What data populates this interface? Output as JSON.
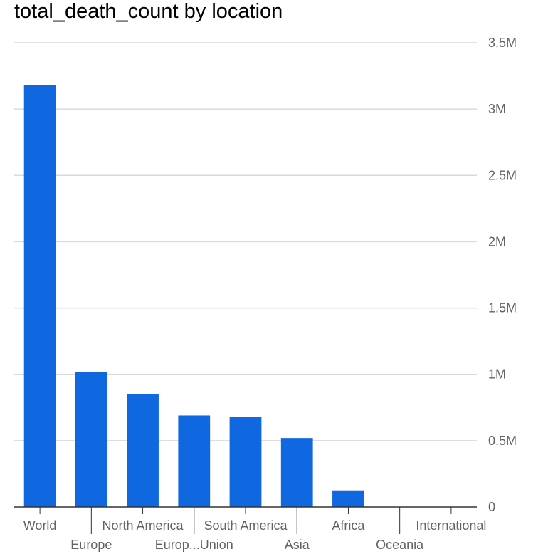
{
  "chart_data": {
    "type": "bar",
    "title": "total_death_count by location",
    "xlabel": "",
    "ylabel": "",
    "categories": [
      "World",
      "Europe",
      "North America",
      "Europ...Union",
      "South America",
      "Asia",
      "Africa",
      "Oceania",
      "International"
    ],
    "series": [
      {
        "values": [
          3180000,
          1020000,
          850000,
          690000,
          680000,
          520000,
          125000,
          2000,
          15
        ]
      }
    ],
    "ylim": [
      0,
      3500000
    ],
    "yticks": [
      0,
      500000,
      1000000,
      1500000,
      2000000,
      2500000,
      3000000,
      3500000
    ],
    "ytick_labels": [
      "0",
      "0.5M",
      "1M",
      "1.5M",
      "2M",
      "2.5M",
      "3M",
      "3.5M"
    ],
    "y_axis_side": "right",
    "grid": true,
    "colors": {
      "bar": "#0f68e0",
      "grid": "#d9d9d9",
      "axis": "#333333",
      "tick_text": "#5f6368"
    }
  }
}
